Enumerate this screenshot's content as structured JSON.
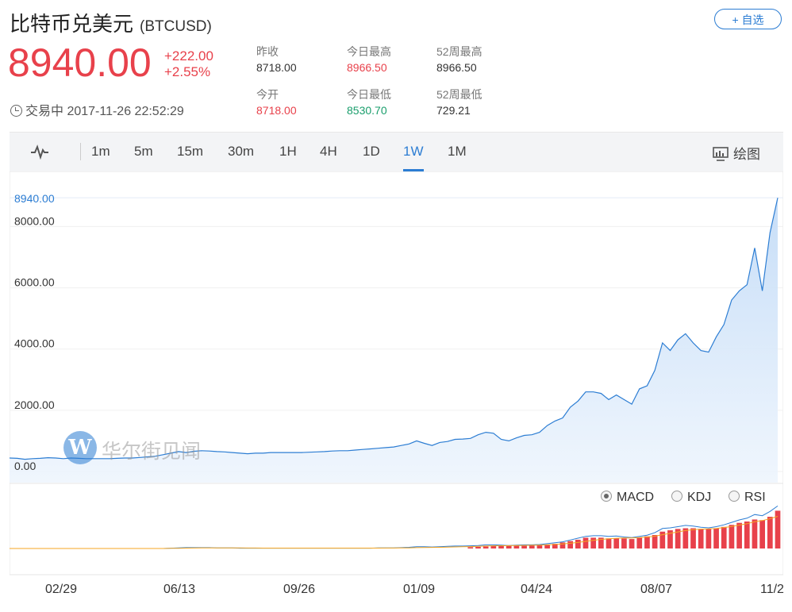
{
  "header": {
    "title": "比特币兑美元",
    "code": "(BTCUSD)",
    "add_label": "+ 自选",
    "price": "8940.00",
    "change": "+222.00",
    "change_pct": "+2.55%",
    "status": "交易中 2017-11-26 22:52:29"
  },
  "stats": [
    {
      "label": "昨收",
      "value": "8718.00"
    },
    {
      "label": "今日最高",
      "value": "8966.50"
    },
    {
      "label": "52周最高",
      "value": "8966.50"
    },
    {
      "label": "今开",
      "value": "8718.00"
    },
    {
      "label": "今日最低",
      "value": "8530.70"
    },
    {
      "label": "52周最低",
      "value": "729.21"
    }
  ],
  "toolbar": {
    "periods": [
      "1m",
      "5m",
      "15m",
      "30m",
      "1H",
      "4H",
      "1D",
      "1W",
      "1M"
    ],
    "active": "1W",
    "draw_label": "绘图"
  },
  "indicators": [
    "MACD",
    "KDJ",
    "RSI"
  ],
  "active_indicator": "MACD",
  "watermark": "华尔街见闻",
  "colors": {
    "up": "#e8414b",
    "down": "#1a9e6c",
    "line": "#2c7dd3",
    "accent": "#2c7dd3"
  },
  "chart_data": {
    "type": "area",
    "x_tick_labels": [
      "02/29",
      "06/13",
      "09/26",
      "01/09",
      "04/24",
      "08/07",
      "11/2"
    ],
    "y_tick_labels": [
      "0.00",
      "2000.00",
      "4000.00",
      "6000.00",
      "8000.00"
    ],
    "last_price_label": "8940.00",
    "ylim": [
      0,
      9800
    ],
    "series": [
      {
        "values": [
          440,
          430,
          400,
          420,
          430,
          450,
          440,
          420,
          440,
          430,
          420,
          420,
          420,
          420,
          430,
          440,
          440,
          460,
          480,
          500,
          550,
          600,
          650,
          620,
          660,
          680,
          670,
          650,
          640,
          620,
          600,
          580,
          600,
          600,
          620,
          620,
          620,
          620,
          620,
          630,
          640,
          650,
          670,
          680,
          680,
          700,
          720,
          740,
          760,
          780,
          800,
          850,
          900,
          1000,
          920,
          850,
          950,
          980,
          1050,
          1060,
          1080,
          1200,
          1280,
          1250,
          1050,
          1000,
          1100,
          1180,
          1200,
          1280,
          1500,
          1650,
          1750,
          2100,
          2300,
          2600,
          2600,
          2550,
          2350,
          2500,
          2350,
          2200,
          2700,
          2800,
          3300,
          4200,
          3950,
          4300,
          4500,
          4200,
          3950,
          3900,
          4400,
          4800,
          5600,
          5900,
          6100,
          7300,
          5900,
          7800,
          8940
        ]
      }
    ],
    "macd": {
      "hist": [
        0,
        0,
        0,
        0,
        0,
        0,
        0,
        0,
        0,
        0,
        0,
        0,
        0,
        0,
        0,
        0,
        0,
        0,
        0,
        0,
        0,
        0,
        0,
        0,
        0,
        0,
        0,
        0,
        0,
        0,
        0,
        0,
        0,
        0,
        0,
        0,
        0,
        0,
        0,
        0,
        0,
        0,
        0,
        0,
        0,
        0,
        0,
        0,
        0,
        0,
        0,
        0,
        0,
        0,
        0,
        0,
        0,
        0,
        0,
        0,
        20,
        25,
        30,
        35,
        40,
        40,
        40,
        40,
        45,
        50,
        60,
        70,
        90,
        110,
        130,
        160,
        160,
        160,
        150,
        150,
        150,
        140,
        160,
        180,
        200,
        250,
        270,
        290,
        300,
        300,
        290,
        290,
        300,
        320,
        350,
        380,
        400,
        430,
        420,
        470,
        560
      ],
      "dif": [
        0,
        0,
        0,
        0,
        0,
        0,
        0,
        0,
        0,
        0,
        0,
        0,
        0,
        0,
        0,
        0,
        0,
        0,
        0,
        0,
        0,
        5,
        10,
        15,
        15,
        15,
        15,
        10,
        10,
        10,
        5,
        5,
        5,
        5,
        5,
        5,
        5,
        5,
        5,
        5,
        5,
        5,
        5,
        5,
        5,
        5,
        5,
        5,
        10,
        10,
        10,
        15,
        20,
        30,
        30,
        25,
        30,
        35,
        40,
        40,
        45,
        50,
        60,
        60,
        55,
        50,
        55,
        60,
        60,
        65,
        80,
        95,
        110,
        140,
        170,
        200,
        210,
        210,
        200,
        205,
        190,
        180,
        200,
        220,
        260,
        330,
        340,
        360,
        380,
        370,
        350,
        340,
        360,
        390,
        430,
        470,
        500,
        560,
        540,
        610,
        700
      ],
      "dea": [
        0,
        0,
        0,
        0,
        0,
        0,
        0,
        0,
        0,
        0,
        0,
        0,
        0,
        0,
        0,
        0,
        0,
        0,
        0,
        0,
        0,
        2,
        4,
        6,
        8,
        9,
        10,
        10,
        10,
        10,
        9,
        8,
        8,
        7,
        7,
        7,
        6,
        6,
        6,
        6,
        6,
        6,
        6,
        6,
        6,
        6,
        6,
        6,
        7,
        8,
        8,
        9,
        11,
        14,
        17,
        18,
        20,
        23,
        26,
        29,
        32,
        35,
        40,
        44,
        46,
        47,
        49,
        51,
        53,
        56,
        60,
        67,
        75,
        86,
        100,
        117,
        135,
        150,
        160,
        169,
        173,
        174,
        179,
        188,
        202,
        227,
        250,
        273,
        296,
        310,
        319,
        323,
        331,
        345,
        362,
        385,
        408,
        440,
        460,
        490,
        530
      ]
    }
  }
}
